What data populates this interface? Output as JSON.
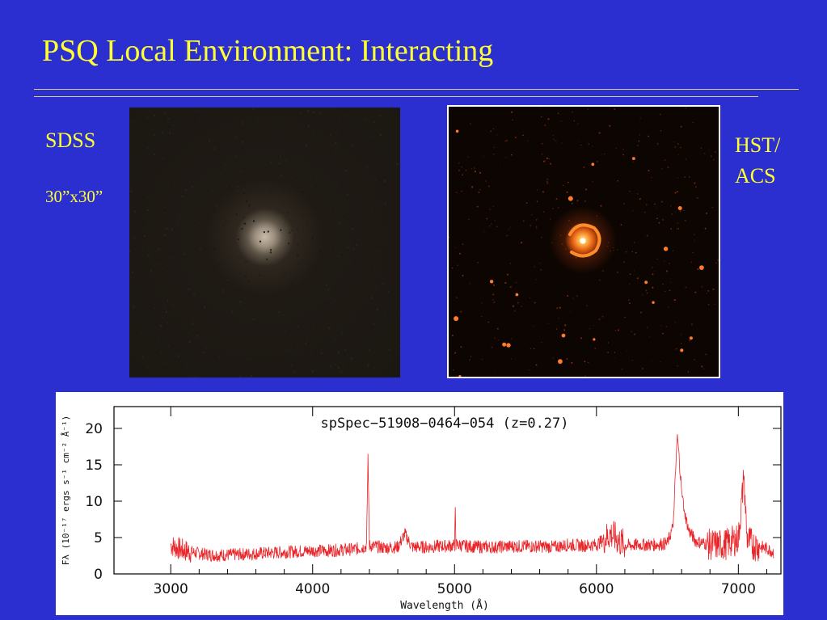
{
  "slide": {
    "title": "PSQ Local Environment: Interacting"
  },
  "left_image": {
    "label": "SDSS",
    "scale": "30”x30”"
  },
  "right_image": {
    "label_line1": "HST/",
    "label_line2": "ACS"
  },
  "colors": {
    "background": "#2b2fd0",
    "title": "#ffff33",
    "spectrum_line": "#e8262a",
    "galaxy_core": "#ffb347"
  },
  "chart_data": {
    "type": "line",
    "title": "spSpec−51908−0464−054 (z=0.27)",
    "xlabel": "Wavelength (Å)",
    "ylabel": "Fλ (10⁻¹⁷ ergs s⁻¹ cm⁻² Å⁻¹)",
    "xlim": [
      2600,
      7300
    ],
    "ylim": [
      0,
      23
    ],
    "x_ticks": [
      3000,
      4000,
      5000,
      6000,
      7000
    ],
    "y_ticks": [
      0,
      5,
      10,
      15,
      20
    ],
    "x_tick_labels": [
      "3000",
      "4000",
      "5000",
      "6000",
      "7000"
    ],
    "y_tick_labels": [
      "0",
      "5",
      "10",
      "15",
      "20"
    ],
    "grid": false,
    "series": [
      {
        "x": [
          3000,
          3050,
          3100,
          3200,
          3300,
          3400,
          3500,
          3600,
          3700,
          3800,
          3900,
          4000,
          4100,
          4200,
          4300,
          4380,
          4390,
          4400,
          4500,
          4600,
          4650,
          4700,
          4800,
          4900,
          5000,
          5005,
          5010,
          5100,
          5200,
          5300,
          5400,
          5500,
          5600,
          5700,
          5800,
          5900,
          6000,
          6100,
          6200,
          6300,
          6400,
          6500,
          6540,
          6570,
          6600,
          6620,
          6650,
          6700,
          6800,
          6900,
          7000,
          7040,
          7060,
          7100,
          7200,
          7250
        ],
        "y": [
          4.0,
          3.5,
          3.2,
          2.8,
          2.6,
          2.6,
          2.7,
          2.8,
          2.9,
          3.0,
          3.1,
          3.2,
          3.2,
          3.3,
          3.4,
          3.8,
          16.5,
          3.9,
          3.6,
          3.7,
          5.5,
          3.7,
          3.7,
          3.8,
          3.9,
          9.2,
          4.0,
          3.8,
          3.7,
          3.7,
          3.8,
          3.8,
          3.8,
          3.7,
          4.0,
          3.9,
          4.0,
          5.5,
          3.9,
          4.0,
          4.0,
          4.2,
          6.5,
          19.2,
          11.5,
          8.5,
          6.0,
          4.5,
          4.0,
          4.0,
          4.8,
          13.5,
          5.0,
          4.0,
          3.5,
          3.0
        ]
      }
    ]
  }
}
